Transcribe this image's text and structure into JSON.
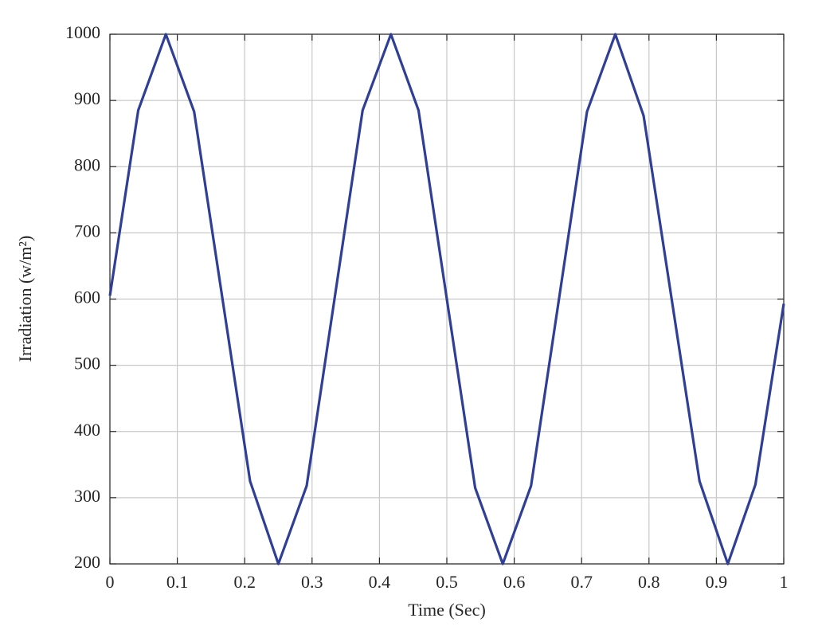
{
  "chart_data": {
    "type": "line",
    "xlabel": "Time (Sec)",
    "ylabel": "Irradiation (w/m²)",
    "x": [
      0,
      0.042,
      0.083,
      0.125,
      0.208,
      0.25,
      0.292,
      0.375,
      0.417,
      0.458,
      0.542,
      0.583,
      0.625,
      0.708,
      0.75,
      0.792,
      0.875,
      0.917,
      0.958,
      1
    ],
    "series": [
      {
        "color": "#2f3f96",
        "values": [
          605,
          885,
          1000,
          883,
          325,
          200,
          318,
          885,
          1000,
          885,
          315,
          200,
          318,
          883,
          1000,
          877,
          325,
          200,
          320,
          593
        ]
      }
    ],
    "xlim": [
      0,
      1
    ],
    "xticks": [
      0,
      0.1,
      0.2,
      0.3,
      0.4,
      0.5,
      0.6,
      0.7,
      0.8,
      0.9,
      1
    ],
    "ylim": [
      200,
      1000
    ],
    "yticks": [
      200,
      300,
      400,
      500,
      600,
      700,
      800,
      900,
      1000
    ],
    "grid": true
  }
}
